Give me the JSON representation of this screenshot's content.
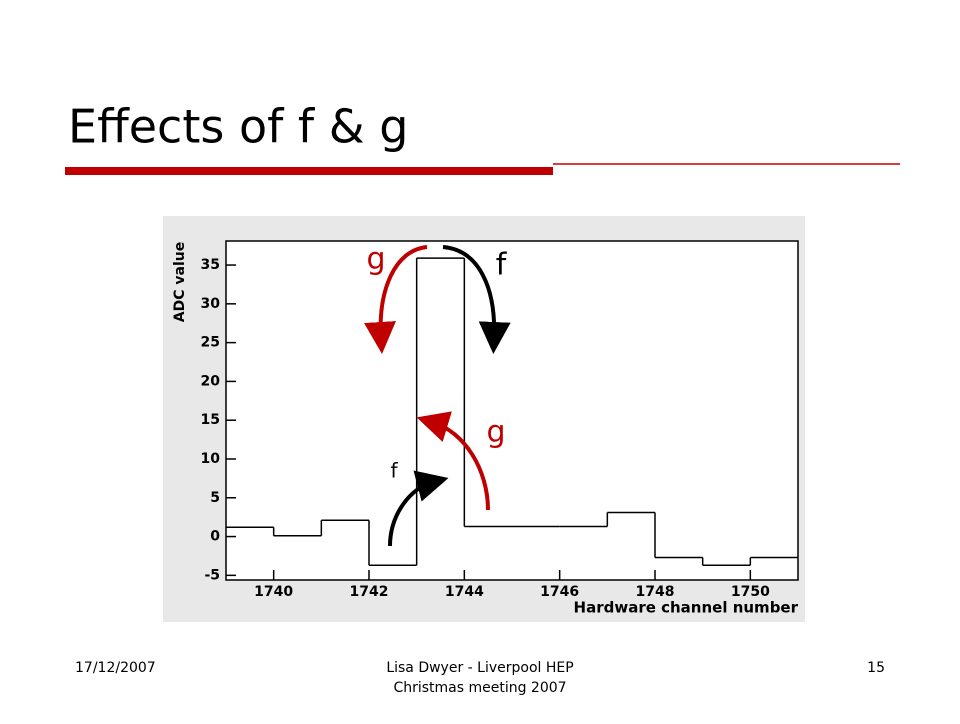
{
  "slide": {
    "title": "Effects of f & g",
    "footer_left": "17/12/2007",
    "footer_center": [
      "Lisa Dwyer -  Liverpool HEP",
      "Christmas meeting 2007"
    ],
    "footer_right": "15"
  },
  "chart_data": {
    "type": "histogram",
    "xlabel": "Hardware channel number",
    "ylabel": "ADC value",
    "bins": [
      1739,
      1740,
      1741,
      1742,
      1743,
      1744,
      1745,
      1746,
      1747,
      1748,
      1749,
      1750,
      1751
    ],
    "values": [
      1.2,
      0.1,
      2.1,
      -3.7,
      35.9,
      1.3,
      1.3,
      1.3,
      3.1,
      -2.7,
      -3.7,
      -2.7
    ],
    "color": "#000000",
    "xlim": [
      1739,
      1751
    ],
    "ylim": [
      -5.6,
      38.1
    ],
    "xticks": [
      1740,
      1742,
      1744,
      1746,
      1748,
      1750
    ],
    "yticks": [
      -5,
      0,
      5,
      10,
      15,
      20,
      25,
      30,
      35
    ],
    "annotations": [
      "g",
      "f",
      "g",
      "f"
    ]
  }
}
